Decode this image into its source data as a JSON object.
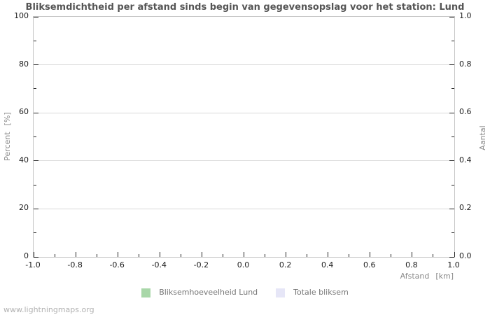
{
  "title": "Bliksemdichtheid per afstand sinds begin van gegevensopslag voor het station: Lund",
  "watermark": "www.lightningmaps.org",
  "colors": {
    "title": "#555555",
    "tick_label": "#1c1c1c",
    "axis_label": "#8a8a8a",
    "legend_label": "#777777",
    "watermark": "#b2b2b2",
    "gridline": "#d9d9d9",
    "plot_frame": "#c5c5c5",
    "series_green": "#a8d7a8",
    "series_lavender": "#e6e6f7"
  },
  "chart_data": {
    "type": "bar",
    "title": "Bliksemdichtheid per afstand sinds begin van gegevensopslag voor het station: Lund",
    "series": [
      {
        "name": "Bliksemhoeveelheid Lund",
        "color": "#a8d7a8",
        "values": []
      },
      {
        "name": "Totale bliksem",
        "color": "#e6e6f7",
        "values": []
      }
    ],
    "no_data": true,
    "xlabel": "Afstand",
    "xlabel_unit": "[km]",
    "ylabel_left": "Percent",
    "ylabel_left_unit": "[%]",
    "ylabel_right": "Aantal",
    "xlim": [
      -1.0,
      1.0
    ],
    "ylim_left": [
      0,
      100
    ],
    "ylim_right": [
      0.0,
      1.0
    ],
    "x_ticks": [
      "-1.0",
      "-0.8",
      "-0.6",
      "-0.4",
      "-0.2",
      "0.0",
      "0.2",
      "0.4",
      "0.6",
      "0.8",
      "1.0"
    ],
    "y_ticks_left": [
      "0",
      "20",
      "40",
      "60",
      "80",
      "100"
    ],
    "y_ticks_right": [
      "0.0",
      "0.2",
      "0.4",
      "0.6",
      "0.8",
      "1.0"
    ],
    "grid": "horizontal-only",
    "legend_position": "bottom-center"
  }
}
